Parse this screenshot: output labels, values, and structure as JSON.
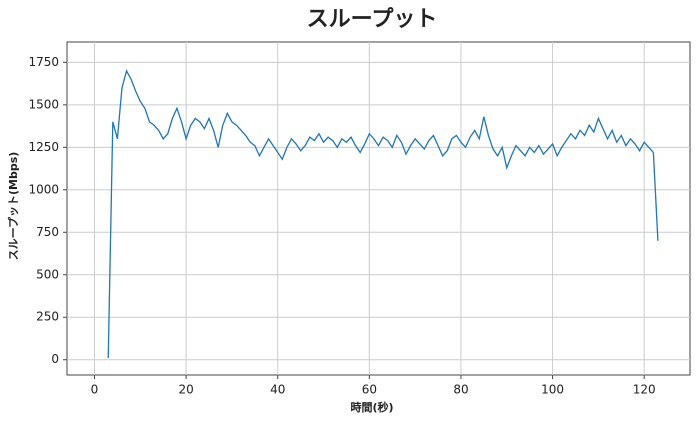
{
  "chart_data": {
    "type": "line",
    "title": "スループット",
    "x_label": "時間(秒)",
    "y_label": "スループット(Mbps)",
    "x": [
      3,
      4,
      5,
      6,
      7,
      8,
      9,
      10,
      11,
      12,
      13,
      14,
      15,
      16,
      17,
      18,
      19,
      20,
      21,
      22,
      23,
      24,
      25,
      26,
      27,
      28,
      29,
      30,
      31,
      32,
      33,
      34,
      35,
      36,
      37,
      38,
      39,
      40,
      41,
      42,
      43,
      44,
      45,
      46,
      47,
      48,
      49,
      50,
      51,
      52,
      53,
      54,
      55,
      56,
      57,
      58,
      59,
      60,
      61,
      62,
      63,
      64,
      65,
      66,
      67,
      68,
      69,
      70,
      71,
      72,
      73,
      74,
      75,
      76,
      77,
      78,
      79,
      80,
      81,
      82,
      83,
      84,
      85,
      86,
      87,
      88,
      89,
      90,
      91,
      92,
      93,
      94,
      95,
      96,
      97,
      98,
      99,
      100,
      101,
      102,
      103,
      104,
      105,
      106,
      107,
      108,
      109,
      110,
      111,
      112,
      113,
      114,
      115,
      116,
      117,
      118,
      119,
      120,
      121,
      122,
      123
    ],
    "series": [
      {
        "name": "スループット",
        "color": "#1f77b4",
        "values": [
          10,
          1400,
          1300,
          1600,
          1700,
          1650,
          1580,
          1520,
          1480,
          1400,
          1380,
          1350,
          1300,
          1330,
          1420,
          1480,
          1400,
          1300,
          1380,
          1420,
          1400,
          1360,
          1420,
          1350,
          1250,
          1380,
          1450,
          1400,
          1380,
          1350,
          1320,
          1280,
          1260,
          1200,
          1250,
          1300,
          1260,
          1220,
          1180,
          1250,
          1300,
          1270,
          1230,
          1260,
          1310,
          1290,
          1330,
          1280,
          1310,
          1290,
          1250,
          1300,
          1280,
          1310,
          1260,
          1220,
          1270,
          1330,
          1300,
          1260,
          1310,
          1290,
          1250,
          1320,
          1280,
          1210,
          1260,
          1300,
          1270,
          1240,
          1290,
          1320,
          1260,
          1200,
          1230,
          1300,
          1320,
          1280,
          1250,
          1310,
          1350,
          1300,
          1430,
          1320,
          1240,
          1200,
          1250,
          1130,
          1200,
          1260,
          1230,
          1200,
          1250,
          1220,
          1260,
          1210,
          1240,
          1270,
          1200,
          1250,
          1290,
          1330,
          1300,
          1350,
          1320,
          1380,
          1340,
          1420,
          1360,
          1300,
          1350,
          1280,
          1320,
          1260,
          1300,
          1270,
          1230,
          1280,
          1250,
          1220,
          700
        ]
      }
    ],
    "xlim": [
      -6,
      130
    ],
    "ylim": [
      -90,
      1870
    ],
    "xticks": [
      0,
      20,
      40,
      60,
      80,
      100,
      120
    ],
    "yticks": [
      0,
      250,
      500,
      750,
      1000,
      1250,
      1500,
      1750
    ],
    "grid": true
  }
}
